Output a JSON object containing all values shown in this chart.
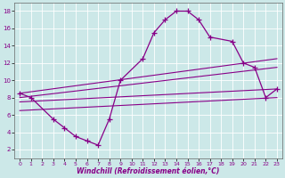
{
  "xlabel": "Windchill (Refroidissement éolien,°C)",
  "xlim": [
    -0.5,
    23.5
  ],
  "ylim": [
    1,
    19
  ],
  "xticks": [
    0,
    1,
    2,
    3,
    4,
    5,
    6,
    7,
    8,
    9,
    10,
    11,
    12,
    13,
    14,
    15,
    16,
    17,
    18,
    19,
    20,
    21,
    22,
    23
  ],
  "yticks": [
    2,
    4,
    6,
    8,
    10,
    12,
    14,
    16,
    18
  ],
  "bg_color": "#cce8e8",
  "line_color": "#880088",
  "main_x": [
    0,
    1,
    3,
    4,
    5,
    6,
    7,
    8,
    9,
    11,
    12,
    13,
    14,
    15,
    16,
    17,
    19,
    20,
    21,
    22,
    23
  ],
  "main_y": [
    8.5,
    8.0,
    5.5,
    4.5,
    3.5,
    3.0,
    2.5,
    5.5,
    10.0,
    12.5,
    15.5,
    17.0,
    18.0,
    18.0,
    17.0,
    15.0,
    14.5,
    12.0,
    11.5,
    8.0,
    9.0
  ],
  "trend_lines": [
    {
      "x0": 0,
      "y0": 8.5,
      "x1": 23,
      "y1": 12.5
    },
    {
      "x0": 0,
      "y0": 8.0,
      "x1": 23,
      "y1": 11.5
    },
    {
      "x0": 0,
      "y0": 7.5,
      "x1": 23,
      "y1": 9.0
    },
    {
      "x0": 0,
      "y0": 6.5,
      "x1": 23,
      "y1": 8.0
    }
  ],
  "figsize": [
    3.2,
    2.0
  ],
  "dpi": 100
}
